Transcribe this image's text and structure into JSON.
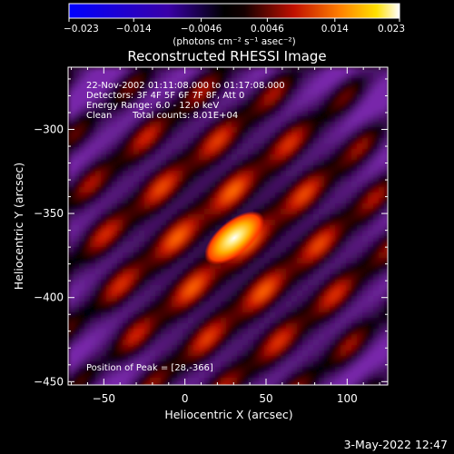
{
  "chart_data": {
    "type": "heatmap",
    "title": "Reconstructed RHESSI Image",
    "xlabel": "Heliocentric X (arcsec)",
    "ylabel": "Heliocentric Y (arcsec)",
    "xlim": [
      -72,
      125
    ],
    "ylim": [
      -452,
      -263
    ],
    "x_ticks": [
      -50,
      0,
      50,
      100
    ],
    "y_ticks": [
      -300,
      -350,
      -400,
      -450
    ],
    "x_tick_labels": [
      "−50",
      "0",
      "50",
      "100"
    ],
    "y_tick_labels": [
      "−300",
      "−350",
      "−400",
      "−450"
    ],
    "colorbar": {
      "range": [
        -0.023,
        0.023
      ],
      "ticks": [
        -0.023,
        -0.014,
        -0.0046,
        0.0046,
        0.014,
        0.023
      ],
      "tick_labels": [
        "−0.023",
        "−0.014",
        "−0.0046",
        "0.0046",
        "0.014",
        "0.023"
      ],
      "unit_label": "(photons cm⁻² s⁻¹ asec⁻²)"
    },
    "annotations": {
      "time_range": "22-Nov-2002 01:11:08.000 to 01:17:08.000",
      "detectors": "Detectors: 3F 4F 5F 6F 7F 8F, Att 0",
      "energy": "Energy Range: 6.0 - 12.0 keV",
      "clean": "Clean",
      "counts": "Total counts: 8.01E+04",
      "peak": "Position of Peak = [28,-366]"
    },
    "peak": {
      "x": 28,
      "y": -366,
      "value": 0.023
    },
    "footer_date": "3-May-2022 12:47"
  }
}
